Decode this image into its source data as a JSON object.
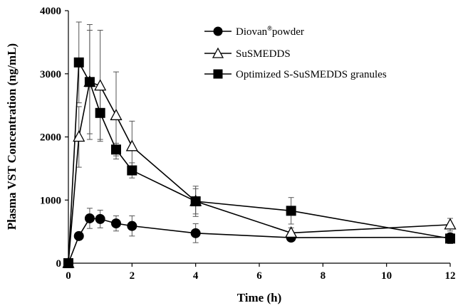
{
  "chart_data": {
    "type": "line",
    "title": "",
    "xlabel": "Time (h)",
    "ylabel": "Plasma VST Concentration (ng/mL)",
    "xlim": [
      0,
      12
    ],
    "ylim": [
      0,
      4000
    ],
    "xticks": [
      0,
      2,
      4,
      6,
      8,
      10,
      12
    ],
    "yticks": [
      0,
      1000,
      2000,
      3000,
      4000
    ],
    "grid": false,
    "legend_position": "top-right",
    "series": [
      {
        "name": "Diovan",
        "name_sup": "®",
        "name_suffix": "powder",
        "marker": "filled-circle",
        "x": [
          0,
          0.33,
          0.67,
          1,
          1.5,
          2,
          4,
          7,
          12
        ],
        "y": [
          0,
          430,
          710,
          700,
          630,
          590,
          475,
          405,
          410
        ],
        "err": [
          0,
          60,
          160,
          140,
          120,
          160,
          150,
          40,
          50
        ]
      },
      {
        "name": "SuSMEDDS",
        "marker": "open-triangle",
        "x": [
          0,
          0.33,
          0.67,
          1,
          1.5,
          2,
          4,
          7,
          12
        ],
        "y": [
          0,
          2000,
          2870,
          2810,
          2340,
          1850,
          980,
          480,
          610
        ],
        "err": [
          0,
          480,
          820,
          880,
          690,
          400,
          200,
          80,
          100
        ]
      },
      {
        "name": "Optimized S-SuSMEDDS granules",
        "marker": "filled-square",
        "x": [
          0,
          0.33,
          0.67,
          1,
          1.5,
          2,
          4,
          7,
          12
        ],
        "y": [
          0,
          3180,
          2870,
          2380,
          1800,
          1470,
          980,
          830,
          390
        ],
        "err": [
          0,
          640,
          910,
          420,
          100,
          120,
          240,
          210,
          80
        ]
      }
    ]
  }
}
